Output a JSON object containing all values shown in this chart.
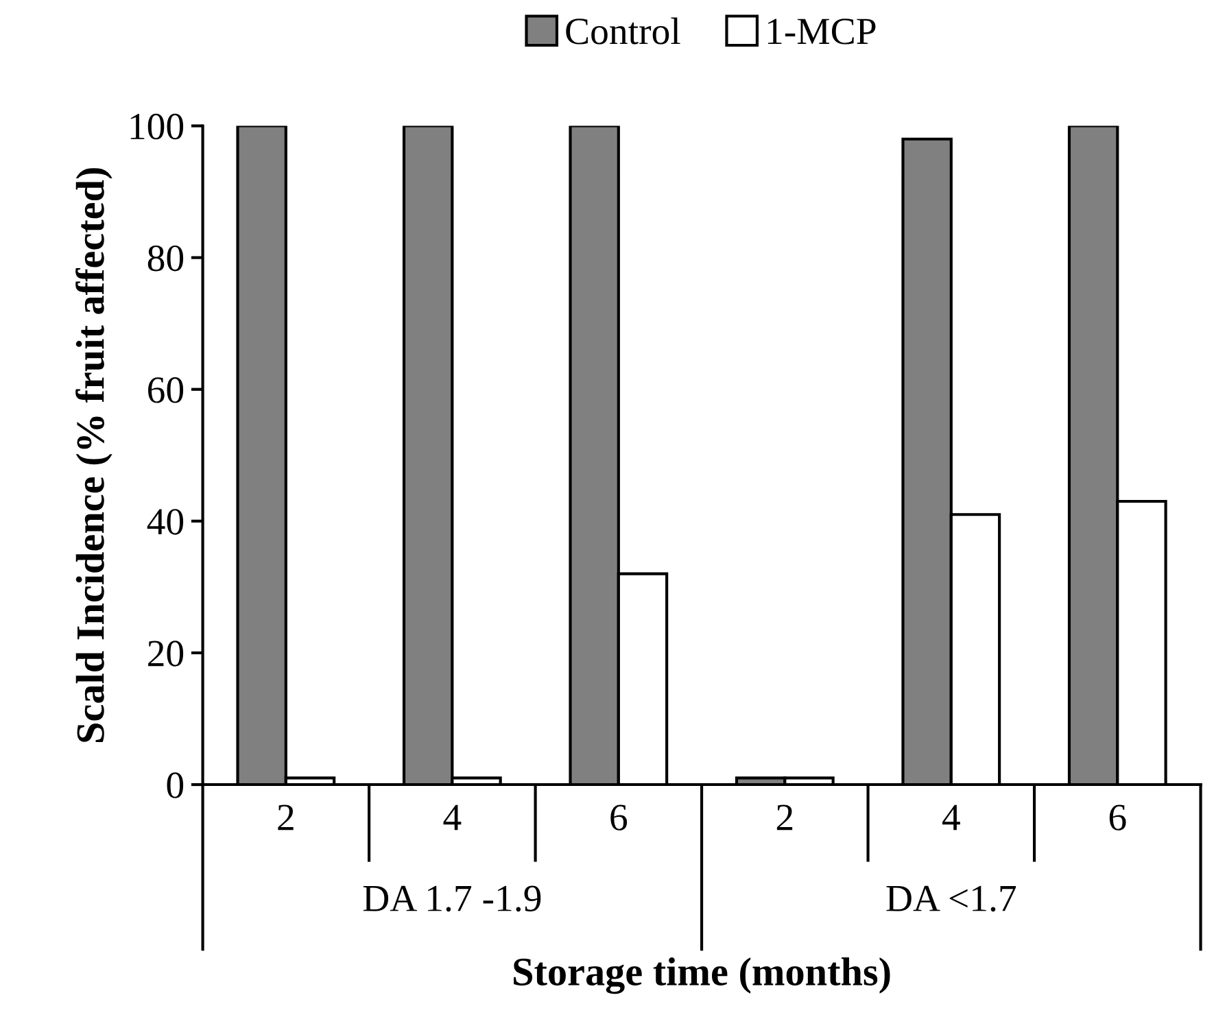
{
  "chart_data": {
    "type": "bar",
    "xlabel": "Storage time (months)",
    "ylabel": "Scald Incidence (% fruit affected)",
    "categories": [
      "2",
      "4",
      "6",
      "2",
      "4",
      "6"
    ],
    "series": [
      {
        "name": "Control",
        "color": "#808080",
        "values": [
          100,
          100,
          100,
          1,
          98,
          100
        ]
      },
      {
        "name": "1-MCP",
        "color": "#ffffff",
        "values": [
          1,
          1,
          32,
          1,
          41,
          43
        ]
      }
    ],
    "ylim": [
      0,
      100
    ],
    "yticks": [
      0,
      20,
      40,
      60,
      80,
      100
    ],
    "grid": false,
    "legend": "top",
    "annotations": [
      "DA 1.7 -1.9",
      "DA <1.7"
    ]
  }
}
